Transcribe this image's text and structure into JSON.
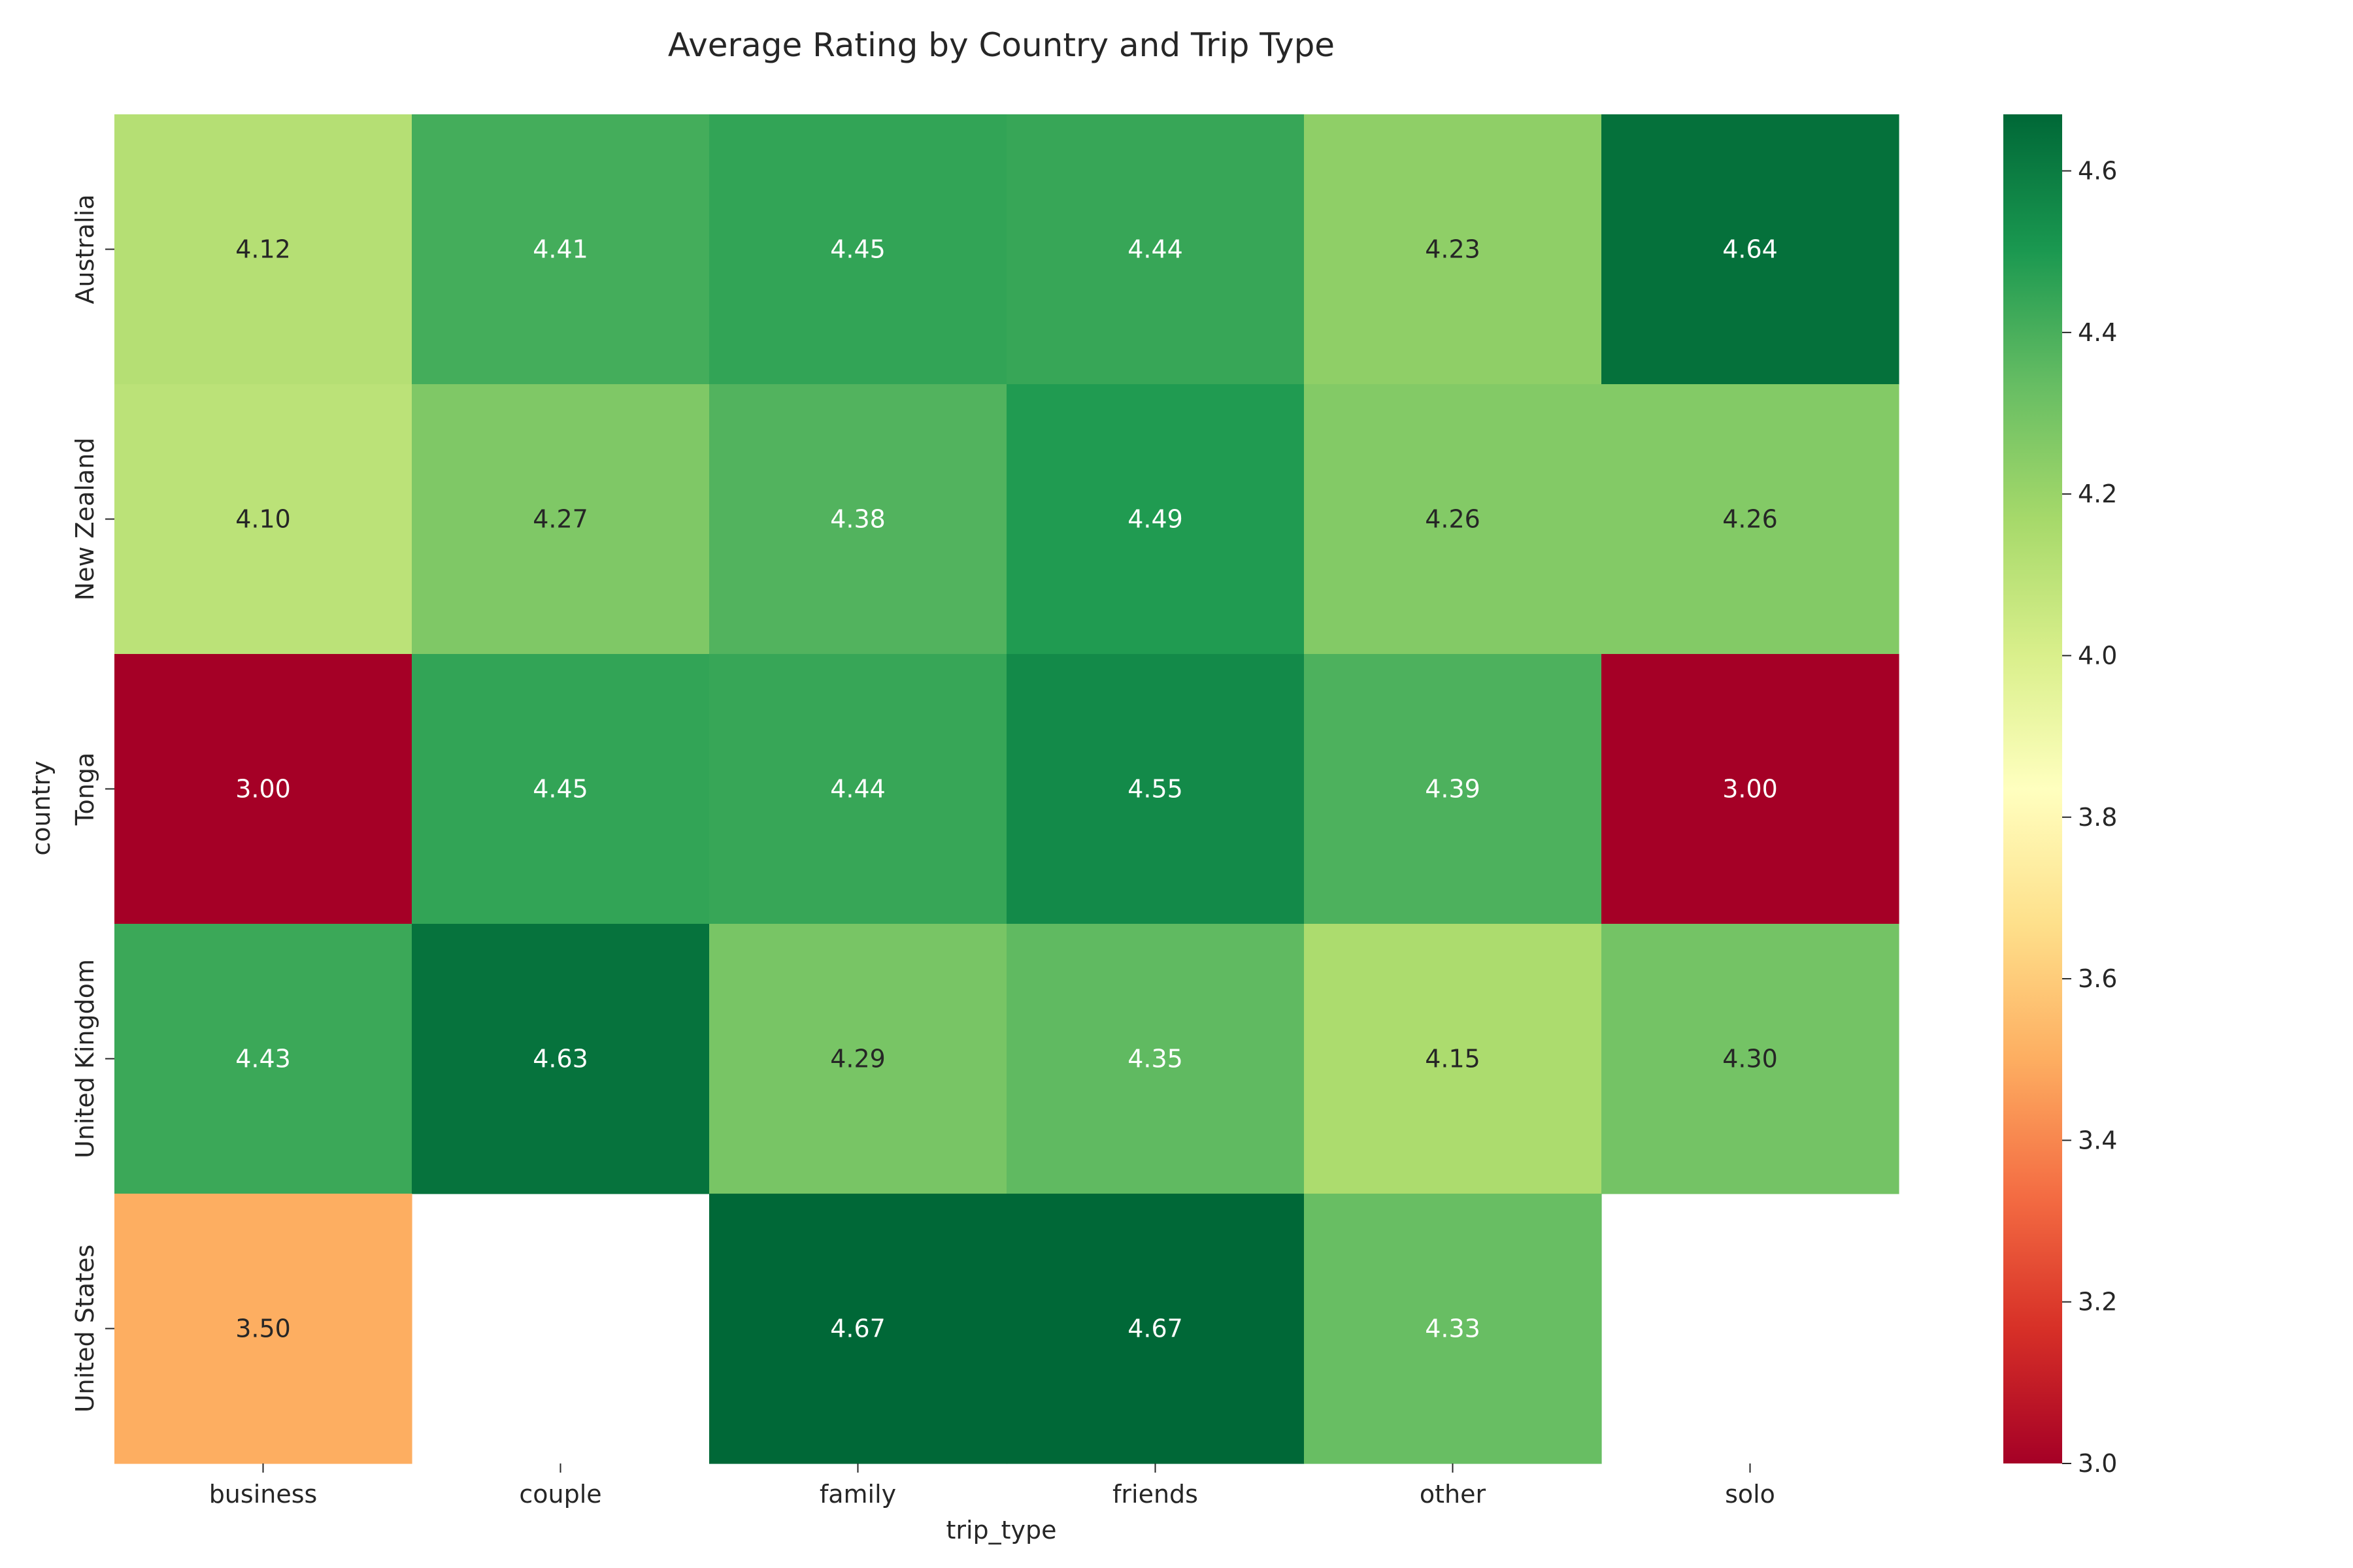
{
  "chart_data": {
    "type": "heatmap",
    "title": "Average Rating by Country and Trip Type",
    "xlabel": "trip_type",
    "ylabel": "country",
    "x_categories": [
      "business",
      "couple",
      "family",
      "friends",
      "other",
      "solo"
    ],
    "y_categories": [
      "Australia",
      "New Zealand",
      "Tonga",
      "United Kingdom",
      "United States"
    ],
    "values": [
      [
        4.12,
        4.41,
        4.45,
        4.44,
        4.23,
        4.64
      ],
      [
        4.1,
        4.27,
        4.38,
        4.49,
        4.26,
        4.26
      ],
      [
        3.0,
        4.45,
        4.44,
        4.55,
        4.39,
        3.0
      ],
      [
        4.43,
        4.63,
        4.29,
        4.35,
        4.15,
        4.3
      ],
      [
        3.5,
        null,
        4.67,
        4.67,
        4.33,
        null
      ]
    ],
    "value_format": "0.00",
    "colormap": "RdYlGn",
    "colorbar": {
      "vmin": 3.0,
      "vmax": 4.67,
      "ticks": [
        "3.0",
        "3.2",
        "3.4",
        "3.6",
        "3.8",
        "4.0",
        "4.2",
        "4.4",
        "4.6"
      ]
    },
    "grid": false,
    "legend": "colorbar-right"
  }
}
